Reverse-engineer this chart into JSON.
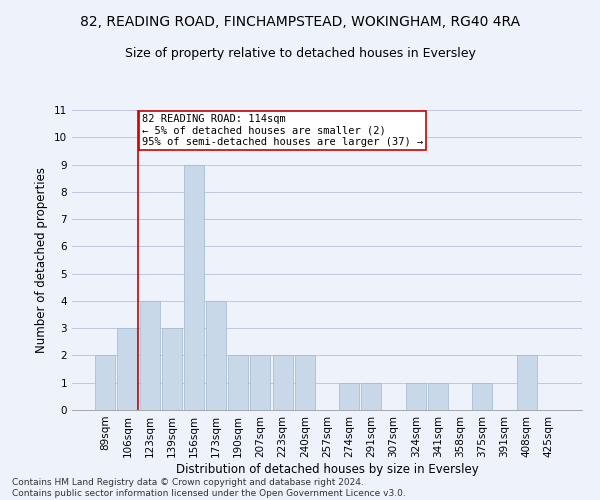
{
  "title": "82, READING ROAD, FINCHAMPSTEAD, WOKINGHAM, RG40 4RA",
  "subtitle": "Size of property relative to detached houses in Eversley",
  "xlabel": "Distribution of detached houses by size in Eversley",
  "ylabel": "Number of detached properties",
  "categories": [
    "89sqm",
    "106sqm",
    "123sqm",
    "139sqm",
    "156sqm",
    "173sqm",
    "190sqm",
    "207sqm",
    "223sqm",
    "240sqm",
    "257sqm",
    "274sqm",
    "291sqm",
    "307sqm",
    "324sqm",
    "341sqm",
    "358sqm",
    "375sqm",
    "391sqm",
    "408sqm",
    "425sqm"
  ],
  "values": [
    2,
    3,
    4,
    3,
    9,
    4,
    2,
    2,
    2,
    2,
    0,
    1,
    1,
    0,
    1,
    1,
    0,
    1,
    0,
    2,
    0
  ],
  "bar_color": "#c8d8e8",
  "bar_edge_color": "#a0b8d0",
  "annotation_text": "82 READING ROAD: 114sqm\n← 5% of detached houses are smaller (2)\n95% of semi-detached houses are larger (37) →",
  "annotation_box_color": "#ffffff",
  "annotation_box_edge": "#cc0000",
  "red_line_color": "#cc0000",
  "footnote": "Contains HM Land Registry data © Crown copyright and database right 2024.\nContains public sector information licensed under the Open Government Licence v3.0.",
  "ylim": [
    0,
    11
  ],
  "yticks": [
    0,
    1,
    2,
    3,
    4,
    5,
    6,
    7,
    8,
    9,
    10,
    11
  ],
  "background_color": "#eef2fb",
  "grid_color": "#c0c8e0",
  "title_fontsize": 10,
  "subtitle_fontsize": 9,
  "tick_fontsize": 7.5,
  "ylabel_fontsize": 8.5,
  "xlabel_fontsize": 8.5,
  "footnote_fontsize": 6.5
}
